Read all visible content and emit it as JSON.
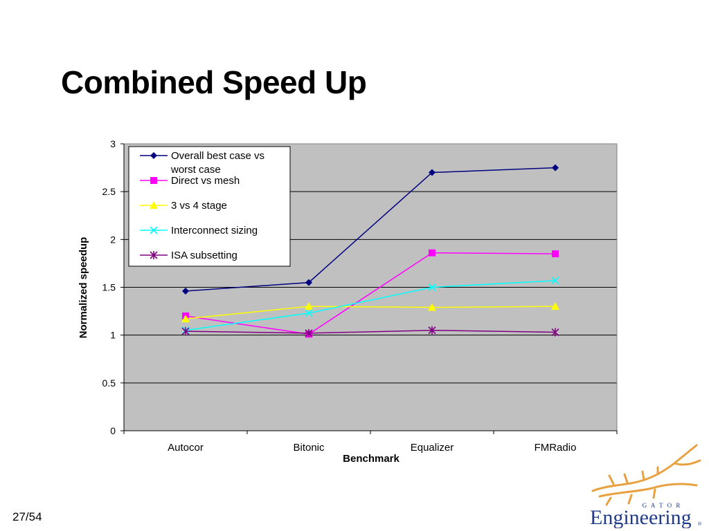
{
  "slide": {
    "title": "Combined Speed Up",
    "page_number": "27/54"
  },
  "logo": {
    "word_top": "G A T O R",
    "word_main": "Engineering",
    "mark": "®"
  },
  "colors": {
    "plot_background": "#c0c0c0",
    "gridline": "#000000",
    "overall": "#000080",
    "direct": "#ff00ff",
    "stage": "#ffff00",
    "interconnect": "#00ffff",
    "isa": "#800080",
    "logo_gator": "#e8a040",
    "logo_text": "#1f3b8c"
  },
  "chart_data": {
    "type": "line",
    "title": "",
    "xlabel": "Benchmark",
    "ylabel": "Normalized speedup",
    "ylim": [
      0,
      3
    ],
    "yticks": [
      "0",
      "0.5",
      "1",
      "1.5",
      "2",
      "2.5",
      "3"
    ],
    "grid": true,
    "legend_position": "top-left",
    "categories": [
      "Autocor",
      "Bitonic",
      "Equalizer",
      "FMRadio"
    ],
    "series": [
      {
        "name": "Overall best case vs worst case",
        "legend_lines": [
          "Overall best case vs",
          "worst case"
        ],
        "marker": "diamond",
        "color": "#000080",
        "values": [
          1.46,
          1.55,
          2.7,
          2.75
        ]
      },
      {
        "name": "Direct vs mesh",
        "legend_lines": [
          "Direct vs mesh"
        ],
        "marker": "square",
        "color": "#ff00ff",
        "values": [
          1.2,
          1.01,
          1.86,
          1.85
        ]
      },
      {
        "name": "3 vs 4 stage",
        "legend_lines": [
          "3 vs 4 stage"
        ],
        "marker": "triangle",
        "color": "#ffff00",
        "values": [
          1.17,
          1.3,
          1.29,
          1.3
        ]
      },
      {
        "name": "Interconnect sizing",
        "legend_lines": [
          "Interconnect sizing"
        ],
        "marker": "x",
        "color": "#00ffff",
        "values": [
          1.05,
          1.23,
          1.5,
          1.57
        ]
      },
      {
        "name": "ISA subsetting",
        "legend_lines": [
          "ISA subsetting"
        ],
        "marker": "star",
        "color": "#800080",
        "values": [
          1.04,
          1.02,
          1.05,
          1.03
        ]
      }
    ]
  }
}
